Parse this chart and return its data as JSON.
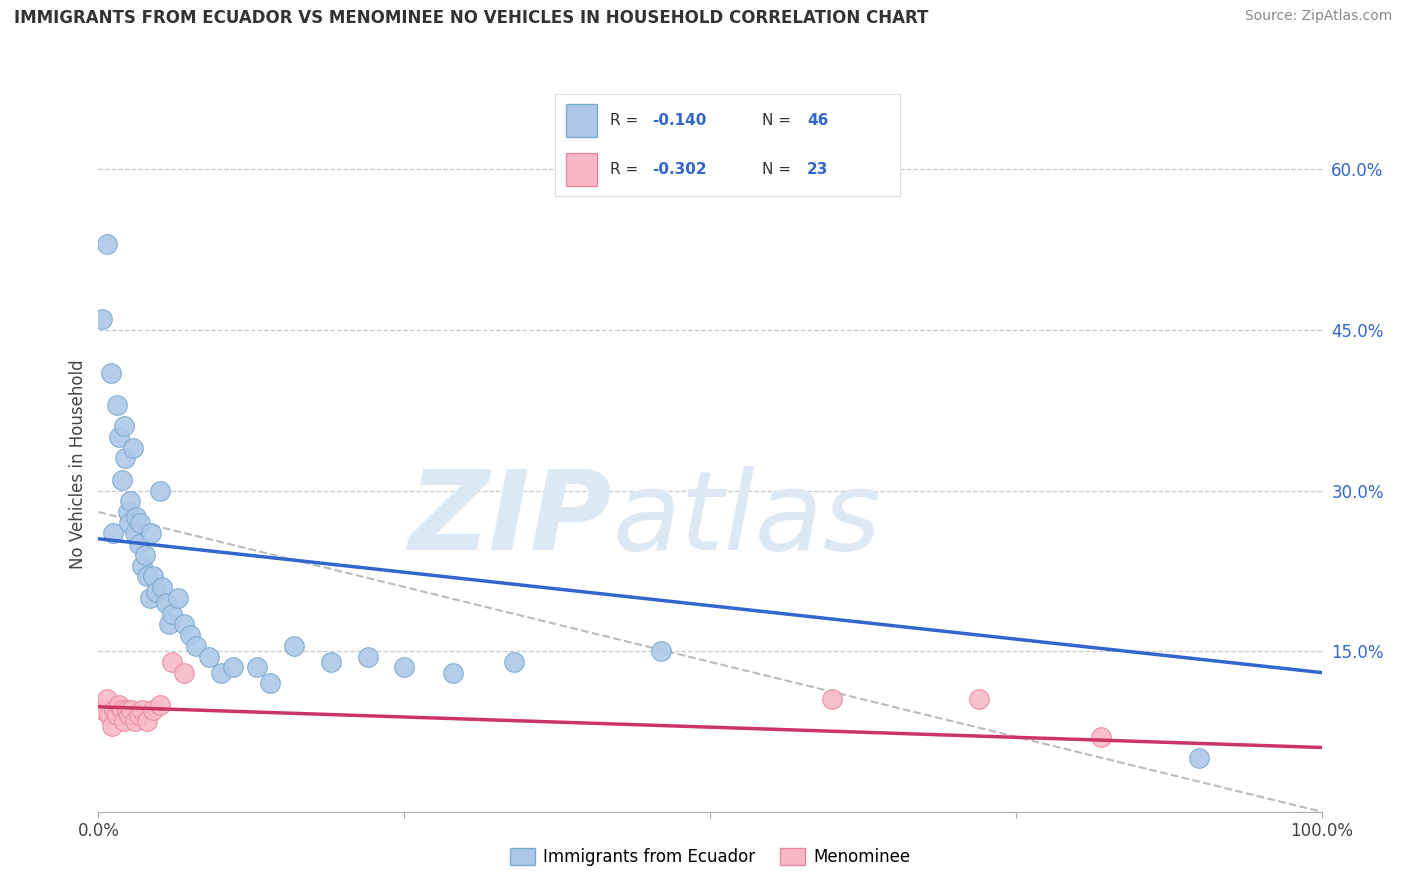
{
  "title": "IMMIGRANTS FROM ECUADOR VS MENOMINEE NO VEHICLES IN HOUSEHOLD CORRELATION CHART",
  "source": "Source: ZipAtlas.com",
  "ylabel": "No Vehicles in Household",
  "xlim": [
    0.0,
    1.0
  ],
  "ylim": [
    0.0,
    0.65
  ],
  "y_ticks_right": [
    0.15,
    0.3,
    0.45,
    0.6
  ],
  "y_tick_labels_right": [
    "15.0%",
    "30.0%",
    "45.0%",
    "60.0%"
  ],
  "grid_color": "#c8c8d0",
  "background_color": "#ffffff",
  "legend_label1": "Immigrants from Ecuador",
  "legend_label2": "Menominee",
  "blue_scatter_color": "#adc8e8",
  "blue_edge_color": "#7aaad0",
  "pink_scatter_color": "#f8b8c8",
  "pink_edge_color": "#e888a0",
  "trend_blue": "#3366cc",
  "trend_pink": "#cc3366",
  "trend_gray": "#aaaaaa",
  "blue_dots_x": [
    0.003,
    0.007,
    0.01,
    0.012,
    0.015,
    0.017,
    0.019,
    0.021,
    0.022,
    0.024,
    0.025,
    0.026,
    0.028,
    0.03,
    0.031,
    0.033,
    0.034,
    0.036,
    0.038,
    0.04,
    0.042,
    0.043,
    0.045,
    0.047,
    0.05,
    0.052,
    0.055,
    0.058,
    0.06,
    0.065,
    0.07,
    0.075,
    0.08,
    0.09,
    0.1,
    0.11,
    0.13,
    0.14,
    0.16,
    0.19,
    0.22,
    0.25,
    0.29,
    0.34,
    0.46,
    0.9
  ],
  "blue_dots_y": [
    0.46,
    0.53,
    0.41,
    0.26,
    0.38,
    0.35,
    0.31,
    0.36,
    0.33,
    0.28,
    0.27,
    0.29,
    0.34,
    0.26,
    0.275,
    0.25,
    0.27,
    0.23,
    0.24,
    0.22,
    0.2,
    0.26,
    0.22,
    0.205,
    0.3,
    0.21,
    0.195,
    0.175,
    0.185,
    0.2,
    0.175,
    0.165,
    0.155,
    0.145,
    0.13,
    0.135,
    0.135,
    0.12,
    0.155,
    0.14,
    0.145,
    0.135,
    0.13,
    0.14,
    0.15,
    0.05
  ],
  "pink_dots_x": [
    0.004,
    0.007,
    0.009,
    0.011,
    0.013,
    0.015,
    0.017,
    0.019,
    0.021,
    0.023,
    0.025,
    0.027,
    0.03,
    0.033,
    0.036,
    0.04,
    0.045,
    0.05,
    0.06,
    0.07,
    0.6,
    0.72,
    0.82
  ],
  "pink_dots_y": [
    0.095,
    0.105,
    0.09,
    0.08,
    0.095,
    0.09,
    0.1,
    0.095,
    0.085,
    0.095,
    0.09,
    0.095,
    0.085,
    0.09,
    0.095,
    0.085,
    0.095,
    0.1,
    0.14,
    0.13,
    0.105,
    0.105,
    0.07
  ],
  "blue_trend_x": [
    0.0,
    1.0
  ],
  "blue_trend_y": [
    0.255,
    0.13
  ],
  "pink_trend_x": [
    0.0,
    1.0
  ],
  "pink_trend_y": [
    0.098,
    0.06
  ],
  "gray_trend_x": [
    0.0,
    1.0
  ],
  "gray_trend_y": [
    0.28,
    0.0
  ]
}
